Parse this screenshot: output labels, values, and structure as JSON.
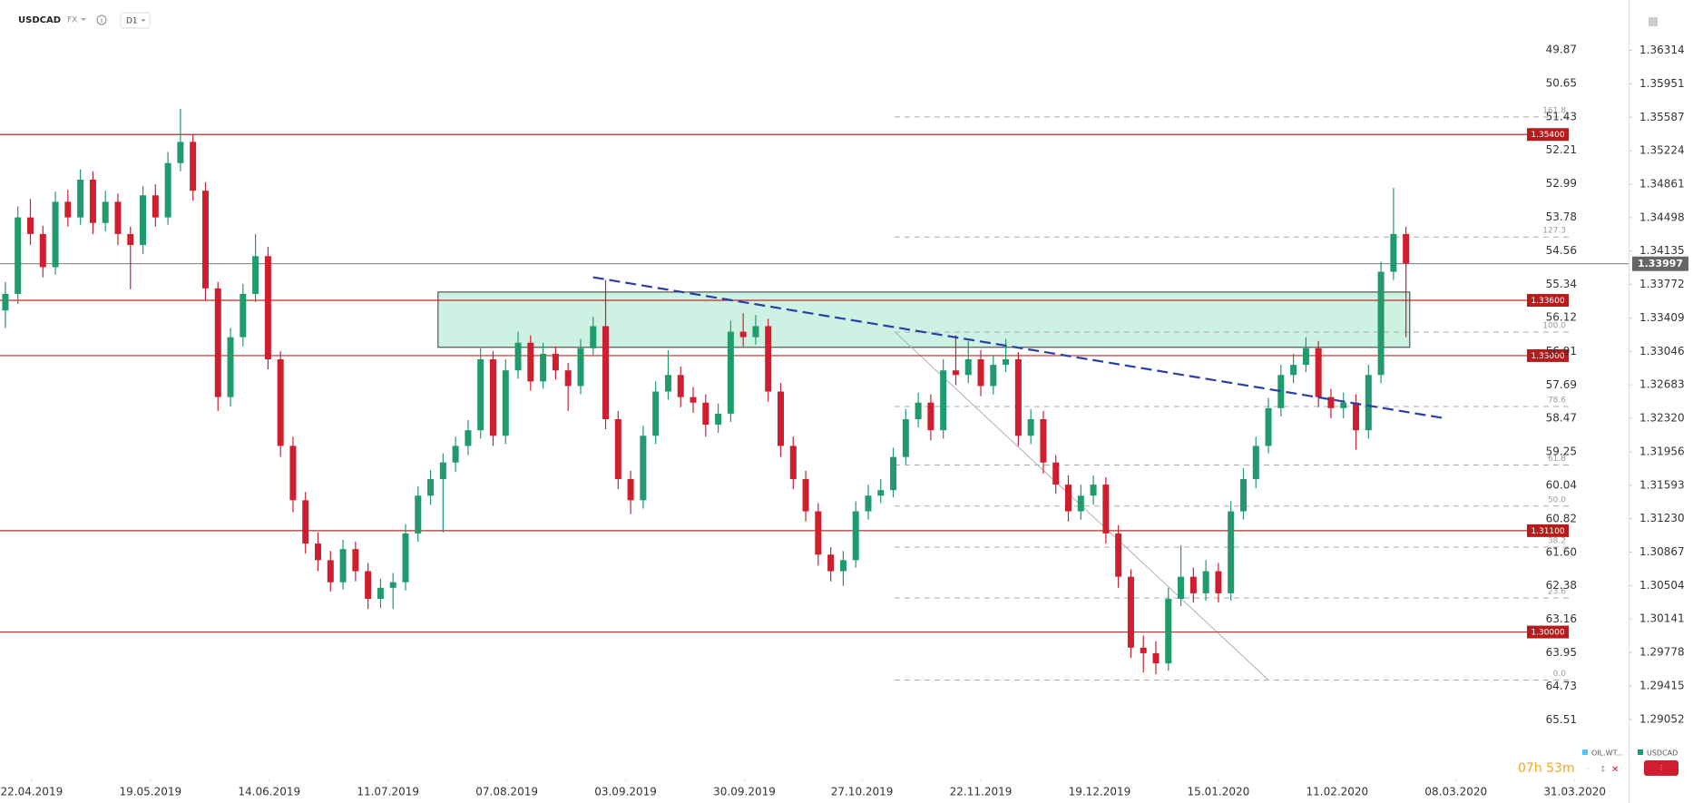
{
  "ui": {
    "symbol": "USDCAD",
    "market": "FX",
    "interval": "D1",
    "timer": "07h 53m",
    "legend": [
      "OIL.WT...",
      "USDCAD"
    ]
  },
  "chart_data": {
    "type": "candlestick",
    "up_color": "#1f9b6c",
    "down_color": "#cf1f2e",
    "xlim": [
      -0.43,
      129.8
    ],
    "xticks": [
      {
        "value": 2.1,
        "label": "22.04.2019"
      },
      {
        "value": 11.6,
        "label": "19.05.2019"
      },
      {
        "value": 21.1,
        "label": "14.06.2019"
      },
      {
        "value": 30.6,
        "label": "11.07.2019"
      },
      {
        "value": 40.1,
        "label": "07.08.2019"
      },
      {
        "value": 49.6,
        "label": "03.09.2019"
      },
      {
        "value": 59.1,
        "label": "30.09.2019"
      },
      {
        "value": 68.5,
        "label": "27.10.2019"
      },
      {
        "value": 78.0,
        "label": "22.11.2019"
      },
      {
        "value": 87.5,
        "label": "19.12.2019"
      },
      {
        "value": 97.0,
        "label": "15.01.2020"
      },
      {
        "value": 106.5,
        "label": "11.02.2020"
      },
      {
        "value": 116.0,
        "label": "08.03.2020"
      },
      {
        "value": 125.5,
        "label": "31.03.2020"
      }
    ],
    "ylim": [
      1.2841,
      1.3686
    ],
    "yticks": [
      1.36314,
      1.35951,
      1.35587,
      1.35224,
      1.34861,
      1.34498,
      1.34135,
      1.33772,
      1.33409,
      1.33046,
      1.32683,
      {
        "value": 1.3232,
        "label": "1.32320"
      },
      1.31956,
      1.31593,
      {
        "value": 1.3123,
        "label": "1.31230"
      },
      1.30867,
      1.30504,
      1.30141,
      1.29778,
      1.29415,
      1.29052
    ],
    "y2lim": [
      66.88,
      48.7
    ],
    "y2ticks": [
      49.87,
      50.65,
      51.43,
      52.21,
      52.99,
      53.78,
      54.56,
      55.34,
      56.12,
      56.91,
      57.69,
      58.47,
      59.25,
      60.04,
      60.82,
      {
        "value": 61.6,
        "label": "61.60"
      },
      62.38,
      63.16,
      63.95,
      64.73,
      65.51
    ],
    "candles": [
      [
        1.3349,
        1.338,
        1.333,
        1.3367
      ],
      [
        1.3367,
        1.3462,
        1.3356,
        1.345
      ],
      [
        1.345,
        1.347,
        1.342,
        1.3432
      ],
      [
        1.3432,
        1.3441,
        1.3385,
        1.3396
      ],
      [
        1.3396,
        1.3478,
        1.3388,
        1.3467
      ],
      [
        1.3467,
        1.348,
        1.344,
        1.345
      ],
      [
        1.345,
        1.3502,
        1.3442,
        1.3491
      ],
      [
        1.3491,
        1.35,
        1.3432,
        1.3444
      ],
      [
        1.3444,
        1.3479,
        1.3435,
        1.3467
      ],
      [
        1.3467,
        1.3476,
        1.342,
        1.3432
      ],
      [
        1.3432,
        1.344,
        1.3372,
        1.342
      ],
      [
        1.342,
        1.3484,
        1.341,
        1.3474
      ],
      [
        1.3474,
        1.3486,
        1.344,
        1.345
      ],
      [
        1.345,
        1.3521,
        1.3442,
        1.3509
      ],
      [
        1.3509,
        1.3568,
        1.35,
        1.3532
      ],
      [
        1.3532,
        1.354,
        1.3468,
        1.3479
      ],
      [
        1.3479,
        1.3488,
        1.336,
        1.3373
      ],
      [
        1.3373,
        1.338,
        1.324,
        1.3255
      ],
      [
        1.3255,
        1.333,
        1.3245,
        1.332
      ],
      [
        1.332,
        1.3378,
        1.331,
        1.3367
      ],
      [
        1.3367,
        1.3432,
        1.3358,
        1.3408
      ],
      [
        1.3408,
        1.3418,
        1.3285,
        1.3296
      ],
      [
        1.3296,
        1.3305,
        1.319,
        1.3202
      ],
      [
        1.3202,
        1.3212,
        1.313,
        1.3143
      ],
      [
        1.3143,
        1.3152,
        1.3085,
        1.3096
      ],
      [
        1.3096,
        1.3108,
        1.3066,
        1.3078
      ],
      [
        1.3078,
        1.3088,
        1.3044,
        1.3054
      ],
      [
        1.3054,
        1.31,
        1.3046,
        1.309
      ],
      [
        1.309,
        1.3098,
        1.3055,
        1.3066
      ],
      [
        1.3066,
        1.3075,
        1.3025,
        1.3036
      ],
      [
        1.3036,
        1.3058,
        1.3026,
        1.3048
      ],
      [
        1.3048,
        1.3064,
        1.3025,
        1.3054
      ],
      [
        1.3054,
        1.3117,
        1.3045,
        1.3107
      ],
      [
        1.3107,
        1.3158,
        1.3098,
        1.3148
      ],
      [
        1.3148,
        1.3176,
        1.3138,
        1.3166
      ],
      [
        1.3166,
        1.3194,
        1.3108,
        1.3184
      ],
      [
        1.3184,
        1.3212,
        1.3174,
        1.3202
      ],
      [
        1.3202,
        1.323,
        1.3192,
        1.3219
      ],
      [
        1.3219,
        1.3308,
        1.321,
        1.3296
      ],
      [
        1.3296,
        1.3305,
        1.3202,
        1.3213
      ],
      [
        1.3213,
        1.3296,
        1.3204,
        1.3284
      ],
      [
        1.3284,
        1.3326,
        1.3275,
        1.3314
      ],
      [
        1.3314,
        1.3322,
        1.3262,
        1.3272
      ],
      [
        1.3272,
        1.3314,
        1.3264,
        1.3302
      ],
      [
        1.3302,
        1.331,
        1.3274,
        1.3284
      ],
      [
        1.3284,
        1.3292,
        1.324,
        1.3267
      ],
      [
        1.3267,
        1.3318,
        1.3258,
        1.3308
      ],
      [
        1.3308,
        1.3342,
        1.33,
        1.3332
      ],
      [
        1.3332,
        1.3382,
        1.322,
        1.3231
      ],
      [
        1.3231,
        1.324,
        1.3155,
        1.3166
      ],
      [
        1.3166,
        1.3175,
        1.3128,
        1.3143
      ],
      [
        1.3143,
        1.3224,
        1.3134,
        1.3213
      ],
      [
        1.3213,
        1.3272,
        1.3204,
        1.3261
      ],
      [
        1.3261,
        1.3306,
        1.3252,
        1.3279
      ],
      [
        1.3279,
        1.3288,
        1.3244,
        1.3255
      ],
      [
        1.3255,
        1.3266,
        1.3238,
        1.3249
      ],
      [
        1.3249,
        1.3258,
        1.3212,
        1.3225
      ],
      [
        1.3225,
        1.3248,
        1.3216,
        1.3237
      ],
      [
        1.3237,
        1.3338,
        1.3228,
        1.3326
      ],
      [
        1.3326,
        1.3346,
        1.331,
        1.332
      ],
      [
        1.332,
        1.3344,
        1.3312,
        1.3332
      ],
      [
        1.3332,
        1.334,
        1.325,
        1.3261
      ],
      [
        1.3261,
        1.327,
        1.319,
        1.3202
      ],
      [
        1.3202,
        1.3212,
        1.3155,
        1.3166
      ],
      [
        1.3166,
        1.3175,
        1.312,
        1.3131
      ],
      [
        1.3131,
        1.314,
        1.3072,
        1.3084
      ],
      [
        1.3084,
        1.3092,
        1.3055,
        1.3066
      ],
      [
        1.3066,
        1.3088,
        1.305,
        1.3078
      ],
      [
        1.3078,
        1.3142,
        1.307,
        1.3131
      ],
      [
        1.3131,
        1.316,
        1.3122,
        1.3148
      ],
      [
        1.3148,
        1.3166,
        1.314,
        1.3154
      ],
      [
        1.3154,
        1.32,
        1.3146,
        1.319
      ],
      [
        1.319,
        1.3242,
        1.3182,
        1.3231
      ],
      [
        1.3231,
        1.326,
        1.3222,
        1.3249
      ],
      [
        1.3249,
        1.3258,
        1.3208,
        1.3219
      ],
      [
        1.3219,
        1.3296,
        1.321,
        1.3284
      ],
      [
        1.3284,
        1.3322,
        1.3268,
        1.3279
      ],
      [
        1.3279,
        1.3316,
        1.327,
        1.3296
      ],
      [
        1.3296,
        1.3306,
        1.3256,
        1.3267
      ],
      [
        1.3267,
        1.33,
        1.3258,
        1.329
      ],
      [
        1.329,
        1.3318,
        1.3282,
        1.3296
      ],
      [
        1.3296,
        1.3304,
        1.3202,
        1.3213
      ],
      [
        1.3213,
        1.3242,
        1.3204,
        1.3231
      ],
      [
        1.3231,
        1.324,
        1.3172,
        1.3184
      ],
      [
        1.3184,
        1.3192,
        1.315,
        1.316
      ],
      [
        1.316,
        1.317,
        1.312,
        1.3131
      ],
      [
        1.3131,
        1.316,
        1.3122,
        1.3148
      ],
      [
        1.3148,
        1.317,
        1.3138,
        1.316
      ],
      [
        1.316,
        1.3168,
        1.3096,
        1.3107
      ],
      [
        1.3107,
        1.3116,
        1.3048,
        1.306
      ],
      [
        1.306,
        1.3068,
        1.2972,
        1.2983
      ],
      [
        1.2983,
        1.2996,
        1.2956,
        1.2977
      ],
      [
        1.2977,
        1.299,
        1.2954,
        1.2966
      ],
      [
        1.2966,
        1.3048,
        1.2958,
        1.3036
      ],
      [
        1.3036,
        1.3094,
        1.3028,
        1.306
      ],
      [
        1.306,
        1.307,
        1.3032,
        1.3042
      ],
      [
        1.3042,
        1.3078,
        1.3034,
        1.3066
      ],
      [
        1.3066,
        1.3075,
        1.3032,
        1.3042
      ],
      [
        1.3042,
        1.3142,
        1.3034,
        1.3131
      ],
      [
        1.3131,
        1.3178,
        1.3122,
        1.3166
      ],
      [
        1.3166,
        1.3212,
        1.3156,
        1.3202
      ],
      [
        1.3202,
        1.3254,
        1.3194,
        1.3243
      ],
      [
        1.3243,
        1.329,
        1.3234,
        1.3279
      ],
      [
        1.3279,
        1.3302,
        1.327,
        1.329
      ],
      [
        1.329,
        1.332,
        1.3282,
        1.3308
      ],
      [
        1.3308,
        1.3316,
        1.3244,
        1.3255
      ],
      [
        1.3255,
        1.3264,
        1.3232,
        1.3243
      ],
      [
        1.3243,
        1.326,
        1.3232,
        1.3249
      ],
      [
        1.3249,
        1.3258,
        1.3198,
        1.3219
      ],
      [
        1.3219,
        1.329,
        1.321,
        1.3279
      ],
      [
        1.3279,
        1.3402,
        1.327,
        1.3391
      ],
      [
        1.3391,
        1.3482,
        1.3382,
        1.3432
      ],
      [
        1.3432,
        1.344,
        1.332,
        1.34
      ]
    ],
    "levels": {
      "color": "#c62828",
      "values": [
        1.354,
        1.336,
        1.33,
        1.311,
        1.3
      ],
      "value_labels": [
        "1.35400",
        "1.33600",
        "1.33000",
        "1.31100",
        "1.30000"
      ]
    },
    "current_price": {
      "value": 1.33997,
      "color": "#666666"
    },
    "fibonacci": {
      "color": "#aaaaaa",
      "start": 71.1,
      "price_range": [
        1.29478,
        1.33256
      ],
      "values": [
        161.8,
        127.3,
        100,
        78.6,
        61.8,
        50,
        38.2,
        23.6,
        0
      ],
      "value_labels": [
        "161.8",
        "127.3",
        "100.0",
        "78.6",
        "61.8",
        "50.0",
        "38.2",
        "23.6",
        "0.0"
      ]
    },
    "zone": {
      "start": 34.6,
      "end": 112.3,
      "low": 1.3309,
      "high": 1.3369,
      "color": "#cdf2e3"
    },
    "trendline": {
      "start": 47.0,
      "end": 115.1,
      "start_price": 1.3385,
      "end_price": 1.3232,
      "color": "#2b3ea8"
    },
    "guide_line": {
      "start": 71.1,
      "end": 101.0,
      "start_price": 1.3326,
      "end_price": 1.2948,
      "color": "#b0b0b0"
    }
  }
}
